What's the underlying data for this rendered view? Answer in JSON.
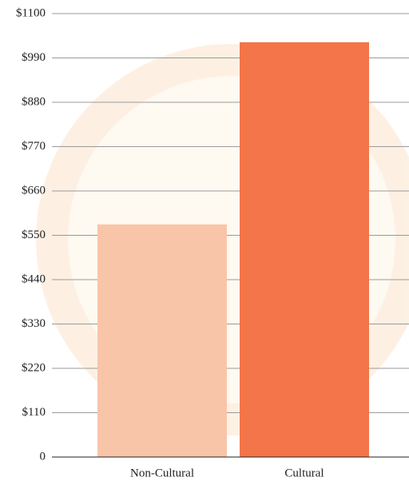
{
  "chart_data": {
    "type": "bar",
    "categories": [
      "Non-Cultural",
      "Cultural"
    ],
    "values": [
      577,
      1029
    ],
    "colors": [
      "#f9c5a8",
      "#f37549"
    ],
    "ylim": [
      0,
      1100
    ],
    "yticks": [
      0,
      {
        "value": 110,
        "label": "$110"
      },
      {
        "value": 220,
        "label": "$220"
      },
      {
        "value": 330,
        "label": "$330"
      },
      {
        "value": 440,
        "label": "$440"
      },
      {
        "value": 550,
        "label": "$550"
      },
      {
        "value": 660,
        "label": "$660"
      },
      {
        "value": 770,
        "label": "$770"
      },
      {
        "value": 880,
        "label": "$880"
      },
      {
        "value": 990,
        "label": "$990"
      },
      {
        "value": 1100,
        "label": "$1100"
      }
    ],
    "grid": true
  }
}
